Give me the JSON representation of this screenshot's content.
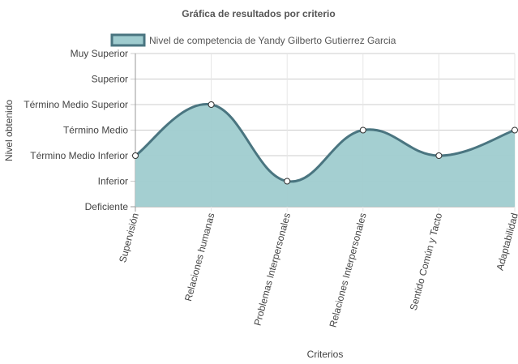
{
  "chart_data": {
    "type": "area",
    "title": "Gráfica de resultados por criterio",
    "xlabel": "Criterios",
    "ylabel": "Nivel obtenido",
    "y_levels": [
      "Deficiente",
      "Inferior",
      "Término Medio Inferior",
      "Término Medio",
      "Término Medio Superior",
      "Superior",
      "Muy Superior"
    ],
    "categories": [
      "Supervisión",
      "Relaciones humanas",
      "Problemas Interpersonales",
      "Relaciones Interpersonales",
      "Sentido Común y Tacto",
      "Adaptabilidad"
    ],
    "series": [
      {
        "name": "Nivel de competencia de Yandy Gilberto Gutierrez Garcia",
        "values": [
          "Término Medio Inferior",
          "Término Medio Superior",
          "Inferior",
          "Término Medio",
          "Término Medio Inferior",
          "Término Medio"
        ],
        "fill_color": "#9fcccf",
        "line_color": "#4a7580"
      }
    ],
    "grid": true,
    "legend_position": "top"
  }
}
